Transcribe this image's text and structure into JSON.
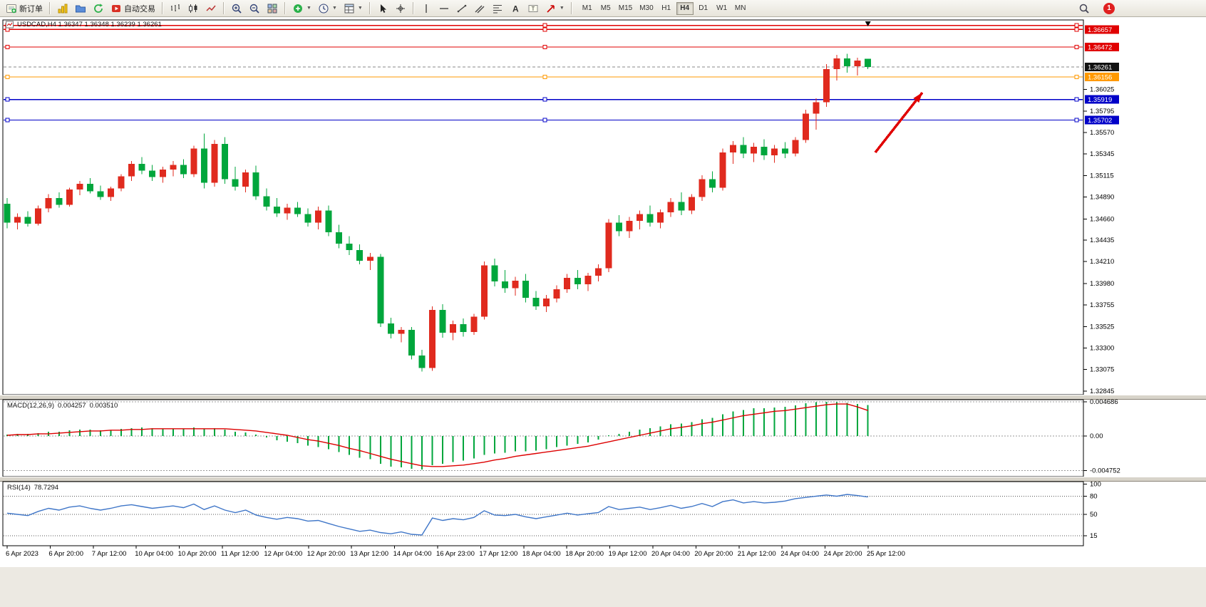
{
  "toolbar": {
    "new_order": "新订单",
    "autotrading": "自动交易",
    "timeframes": [
      "M1",
      "M5",
      "M15",
      "M30",
      "H1",
      "H4",
      "D1",
      "W1",
      "MN"
    ],
    "active_timeframe": "H4",
    "badge": "1"
  },
  "chart": {
    "title": "USDCAD,H4 1.36347 1.36348 1.36239 1.36261"
  },
  "macd": {
    "label": "MACD(12,26,9)",
    "value": "0.004257",
    "signal": "0.003510"
  },
  "rsi": {
    "label": "RSI(14)",
    "value": "78.7294"
  },
  "colors": {
    "bull": "#e02a1e",
    "bear": "#00a63c",
    "macd_hist": "#00a63c",
    "macd_signal": "#dd0000",
    "rsi_line": "#3f76c8",
    "bid_label_bg": "#111111"
  },
  "chart_data": {
    "type": "candlestick",
    "symbol": "USDCAD",
    "period": "H4",
    "current_bar": {
      "open": 1.36347,
      "high": 1.36348,
      "low": 1.36239,
      "close": 1.36261
    },
    "price_axis": {
      "ticks": [
        1.36025,
        1.35795,
        1.3557,
        1.35345,
        1.35115,
        1.3489,
        1.3466,
        1.34435,
        1.3421,
        1.3398,
        1.33755,
        1.33525,
        1.333,
        1.33075,
        1.32845
      ],
      "lines": [
        {
          "price": 1.367,
          "color": "#e00000",
          "labeled": false
        },
        {
          "price": 1.36657,
          "color": "#e00000",
          "labeled": true
        },
        {
          "price": 1.36472,
          "color": "#e00000",
          "labeled": true
        },
        {
          "price": 1.36156,
          "color": "#ff9900",
          "labeled": true
        },
        {
          "price": 1.35919,
          "color": "#0000c8",
          "labeled": true
        },
        {
          "price": 1.35702,
          "color": "#0000c8",
          "labeled": true
        }
      ],
      "bid": 1.36261
    },
    "time_labels": [
      "6 Apr 2023",
      "6 Apr 20:00",
      "7 Apr 12:00",
      "10 Apr 04:00",
      "10 Apr 20:00",
      "11 Apr 12:00",
      "12 Apr 04:00",
      "12 Apr 20:00",
      "13 Apr 12:00",
      "14 Apr 04:00",
      "16 Apr 23:00",
      "17 Apr 12:00",
      "18 Apr 04:00",
      "18 Apr 20:00",
      "19 Apr 12:00",
      "20 Apr 04:00",
      "20 Apr 20:00",
      "21 Apr 12:00",
      "24 Apr 04:00",
      "24 Apr 20:00",
      "25 Apr 12:00"
    ],
    "candles": [
      [
        1.3482,
        1.3488,
        1.3456,
        1.3462
      ],
      [
        1.3462,
        1.3472,
        1.3455,
        1.3468
      ],
      [
        1.3468,
        1.3474,
        1.3458,
        1.3461
      ],
      [
        1.3461,
        1.348,
        1.3459,
        1.3477
      ],
      [
        1.3477,
        1.3492,
        1.3473,
        1.3488
      ],
      [
        1.3488,
        1.3494,
        1.3478,
        1.3481
      ],
      [
        1.3481,
        1.3499,
        1.3479,
        1.3497
      ],
      [
        1.3497,
        1.3506,
        1.3491,
        1.3503
      ],
      [
        1.3503,
        1.3509,
        1.3493,
        1.3495
      ],
      [
        1.3495,
        1.3501,
        1.3486,
        1.3489
      ],
      [
        1.3489,
        1.35,
        1.3485,
        1.3498
      ],
      [
        1.3498,
        1.3513,
        1.3495,
        1.3511
      ],
      [
        1.3511,
        1.3527,
        1.3506,
        1.3524
      ],
      [
        1.3524,
        1.3531,
        1.3513,
        1.3517
      ],
      [
        1.3517,
        1.3523,
        1.3506,
        1.351
      ],
      [
        1.351,
        1.3521,
        1.3504,
        1.3518
      ],
      [
        1.3518,
        1.3527,
        1.3511,
        1.3523
      ],
      [
        1.3523,
        1.3529,
        1.3509,
        1.3513
      ],
      [
        1.3513,
        1.3543,
        1.351,
        1.354
      ],
      [
        1.354,
        1.3556,
        1.3498,
        1.3504
      ],
      [
        1.3504,
        1.3549,
        1.35,
        1.3545
      ],
      [
        1.3545,
        1.3552,
        1.3503,
        1.3508
      ],
      [
        1.3508,
        1.3521,
        1.3496,
        1.35
      ],
      [
        1.35,
        1.3518,
        1.3494,
        1.3515
      ],
      [
        1.3515,
        1.3522,
        1.3486,
        1.349
      ],
      [
        1.349,
        1.3498,
        1.3475,
        1.3479
      ],
      [
        1.3479,
        1.3488,
        1.3468,
        1.3472
      ],
      [
        1.3472,
        1.3482,
        1.3465,
        1.3478
      ],
      [
        1.3478,
        1.3484,
        1.3468,
        1.3471
      ],
      [
        1.3471,
        1.3477,
        1.3458,
        1.3462
      ],
      [
        1.3462,
        1.3479,
        1.3455,
        1.3475
      ],
      [
        1.3475,
        1.348,
        1.3448,
        1.3452
      ],
      [
        1.3452,
        1.346,
        1.3435,
        1.344
      ],
      [
        1.344,
        1.3448,
        1.3428,
        1.3433
      ],
      [
        1.3433,
        1.3439,
        1.3418,
        1.3422
      ],
      [
        1.3422,
        1.343,
        1.3412,
        1.3426
      ],
      [
        1.3426,
        1.3429,
        1.3352,
        1.3356
      ],
      [
        1.3356,
        1.3362,
        1.334,
        1.3345
      ],
      [
        1.3345,
        1.3352,
        1.3336,
        1.3349
      ],
      [
        1.3349,
        1.3352,
        1.3318,
        1.3322
      ],
      [
        1.3322,
        1.3328,
        1.3305,
        1.3309
      ],
      [
        1.3309,
        1.3374,
        1.3306,
        1.337
      ],
      [
        1.337,
        1.3376,
        1.3341,
        1.3346
      ],
      [
        1.3346,
        1.3359,
        1.3338,
        1.3355
      ],
      [
        1.3355,
        1.3361,
        1.3342,
        1.3347
      ],
      [
        1.3347,
        1.3366,
        1.3344,
        1.3363
      ],
      [
        1.3363,
        1.3421,
        1.336,
        1.3417
      ],
      [
        1.3417,
        1.3424,
        1.3395,
        1.34
      ],
      [
        1.34,
        1.3412,
        1.3388,
        1.3393
      ],
      [
        1.3393,
        1.3405,
        1.3385,
        1.3401
      ],
      [
        1.3401,
        1.3408,
        1.3378,
        1.3383
      ],
      [
        1.3383,
        1.339,
        1.337,
        1.3374
      ],
      [
        1.3374,
        1.3386,
        1.3368,
        1.3382
      ],
      [
        1.3382,
        1.3396,
        1.3378,
        1.3392
      ],
      [
        1.3392,
        1.3408,
        1.3388,
        1.3404
      ],
      [
        1.3404,
        1.3412,
        1.3392,
        1.3397
      ],
      [
        1.3397,
        1.3409,
        1.339,
        1.3406
      ],
      [
        1.3406,
        1.3418,
        1.34,
        1.3414
      ],
      [
        1.3414,
        1.3466,
        1.341,
        1.3462
      ],
      [
        1.3462,
        1.347,
        1.3448,
        1.3453
      ],
      [
        1.3453,
        1.3468,
        1.3446,
        1.3464
      ],
      [
        1.3464,
        1.3475,
        1.3455,
        1.3471
      ],
      [
        1.3471,
        1.348,
        1.3458,
        1.3462
      ],
      [
        1.3462,
        1.3476,
        1.3456,
        1.3473
      ],
      [
        1.3473,
        1.3488,
        1.3468,
        1.3484
      ],
      [
        1.3484,
        1.3494,
        1.347,
        1.3475
      ],
      [
        1.3475,
        1.3492,
        1.3471,
        1.3489
      ],
      [
        1.3489,
        1.3512,
        1.3485,
        1.3508
      ],
      [
        1.3508,
        1.3516,
        1.3494,
        1.3499
      ],
      [
        1.3499,
        1.354,
        1.3496,
        1.3536
      ],
      [
        1.3536,
        1.3548,
        1.3524,
        1.3544
      ],
      [
        1.3544,
        1.3552,
        1.353,
        1.3535
      ],
      [
        1.3535,
        1.3546,
        1.3526,
        1.3542
      ],
      [
        1.3542,
        1.355,
        1.3528,
        1.3533
      ],
      [
        1.3533,
        1.3544,
        1.3525,
        1.354
      ],
      [
        1.354,
        1.3547,
        1.353,
        1.3535
      ],
      [
        1.3535,
        1.3552,
        1.3532,
        1.3549
      ],
      [
        1.3549,
        1.3581,
        1.3546,
        1.3577
      ],
      [
        1.3577,
        1.3593,
        1.356,
        1.3589
      ],
      [
        1.3589,
        1.3629,
        1.3584,
        1.3624
      ],
      [
        1.3624,
        1.3639,
        1.3612,
        1.3635
      ],
      [
        1.3635,
        1.364,
        1.362,
        1.3627
      ],
      [
        1.3627,
        1.3636,
        1.3617,
        1.3633
      ],
      [
        1.36347,
        1.36348,
        1.36239,
        1.36261
      ]
    ],
    "macd": {
      "histogram": [
        0.0002,
        0.0003,
        0.0003,
        0.0004,
        0.0006,
        0.0006,
        0.0008,
        0.0009,
        0.0009,
        0.0008,
        0.0008,
        0.001,
        0.0011,
        0.0012,
        0.0011,
        0.001,
        0.001,
        0.001,
        0.0012,
        0.001,
        0.0011,
        0.0009,
        0.0006,
        0.0005,
        0.0002,
        -0.0002,
        -0.0006,
        -0.0008,
        -0.001,
        -0.0013,
        -0.0015,
        -0.0018,
        -0.0022,
        -0.0026,
        -0.003,
        -0.0032,
        -0.0038,
        -0.0042,
        -0.0043,
        -0.0045,
        -0.0046,
        -0.004,
        -0.0038,
        -0.0036,
        -0.0034,
        -0.0031,
        -0.0026,
        -0.0024,
        -0.0023,
        -0.0021,
        -0.0021,
        -0.002,
        -0.0018,
        -0.0015,
        -0.0013,
        -0.0011,
        -0.0009,
        -0.0005,
        0.0001,
        0.0003,
        0.0006,
        0.0009,
        0.0011,
        0.0013,
        0.0016,
        0.0017,
        0.0019,
        0.0023,
        0.0025,
        0.003,
        0.0034,
        0.0036,
        0.0038,
        0.0038,
        0.0039,
        0.004,
        0.0042,
        0.0045,
        0.00468,
        0.004686,
        0.00465,
        0.00455,
        0.0044,
        0.004257
      ],
      "signal_line": [
        0.0001,
        0.0002,
        0.0002,
        0.0003,
        0.0003,
        0.0004,
        0.0005,
        0.0006,
        0.0007,
        0.0007,
        0.0008,
        0.0008,
        0.0009,
        0.0009,
        0.001,
        0.001,
        0.001,
        0.001,
        0.001,
        0.001,
        0.001,
        0.001,
        0.0009,
        0.0008,
        0.0007,
        0.0005,
        0.0003,
        0.0001,
        -0.0002,
        -0.0005,
        -0.0007,
        -0.001,
        -0.0013,
        -0.0017,
        -0.002,
        -0.0024,
        -0.0028,
        -0.0032,
        -0.0035,
        -0.0038,
        -0.0041,
        -0.0042,
        -0.0042,
        -0.0041,
        -0.004,
        -0.0038,
        -0.0036,
        -0.0033,
        -0.0031,
        -0.0028,
        -0.0026,
        -0.0024,
        -0.0022,
        -0.002,
        -0.0018,
        -0.0016,
        -0.0014,
        -0.0011,
        -0.0008,
        -0.0005,
        -0.0002,
        0.0001,
        0.0004,
        0.0007,
        0.001,
        0.0012,
        0.0014,
        0.0017,
        0.0019,
        0.0022,
        0.0025,
        0.0028,
        0.003,
        0.0032,
        0.0034,
        0.0035,
        0.0037,
        0.0039,
        0.0041,
        0.0043,
        0.0044,
        0.0044,
        0.004,
        0.00351
      ],
      "scale": [
        0.004686,
        0,
        -0.004752
      ]
    },
    "rsi": {
      "values": [
        52,
        50,
        48,
        55,
        60,
        57,
        62,
        64,
        60,
        57,
        60,
        64,
        66,
        63,
        60,
        62,
        64,
        61,
        67,
        58,
        64,
        57,
        53,
        57,
        49,
        45,
        42,
        45,
        43,
        39,
        40,
        35,
        30,
        26,
        22,
        24,
        20,
        18,
        21,
        17,
        16,
        44,
        40,
        43,
        41,
        45,
        56,
        49,
        48,
        50,
        46,
        43,
        46,
        49,
        52,
        49,
        51,
        53,
        63,
        58,
        60,
        62,
        58,
        61,
        65,
        60,
        63,
        68,
        63,
        71,
        74,
        69,
        71,
        69,
        70,
        72,
        76,
        78,
        80,
        82,
        80,
        83,
        81,
        78.7
      ],
      "levels": [
        15,
        50,
        80,
        100
      ]
    },
    "annotations": {
      "arrow": {
        "from": [
          1228,
          190
        ],
        "to": [
          1294,
          106
        ],
        "color": "#e00000"
      }
    }
  }
}
